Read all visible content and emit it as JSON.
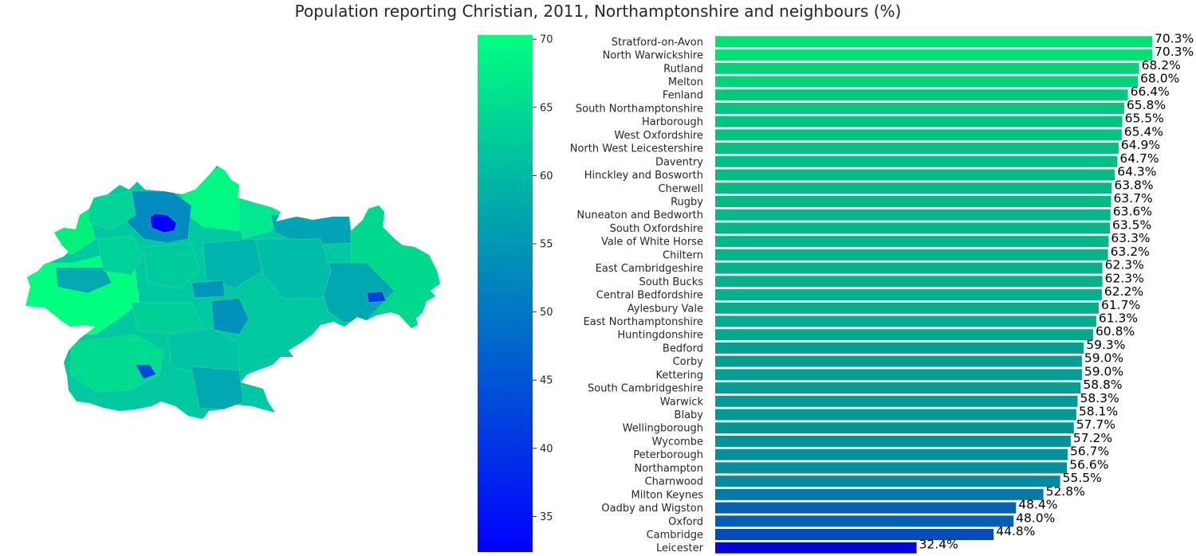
{
  "chart_data": [
    {
      "type": "map",
      "title": "Population reporting Christian, 2011, Northamptonshire and neighbours (%)",
      "colorbar": {
        "min": 32.4,
        "max": 70.3,
        "ticks": [
          35,
          40,
          45,
          50,
          55,
          60,
          65,
          70
        ],
        "tick_labels": [
          "35",
          "40",
          "45",
          "50",
          "55",
          "60",
          "65",
          "70"
        ],
        "color_low": "#0000ff",
        "color_high": "#00ff80",
        "colormap": "winter"
      }
    },
    {
      "type": "bar",
      "orientation": "horizontal",
      "xlim": [
        0,
        70.3
      ],
      "categories": [
        "Stratford-on-Avon",
        "North Warwickshire",
        "Rutland",
        "Melton",
        "Fenland",
        "South Northamptonshire",
        "Harborough",
        "West Oxfordshire",
        "North West Leicestershire",
        "Daventry",
        "Hinckley and Bosworth",
        "Cherwell",
        "Rugby",
        "Nuneaton and Bedworth",
        "South Oxfordshire",
        "Vale of White Horse",
        "Chiltern",
        "East Cambridgeshire",
        "South Bucks",
        "Central Bedfordshire",
        "Aylesbury Vale",
        "East Northamptonshire",
        "Huntingdonshire",
        "Bedford",
        "Corby",
        "Kettering",
        "South Cambridgeshire",
        "Warwick",
        "Blaby",
        "Wellingborough",
        "Wycombe",
        "Peterborough",
        "Northampton",
        "Charnwood",
        "Milton Keynes",
        "Oadby and Wigston",
        "Oxford",
        "Cambridge",
        "Leicester"
      ],
      "values": [
        70.3,
        70.3,
        68.2,
        68.0,
        66.4,
        65.8,
        65.5,
        65.4,
        64.9,
        64.7,
        64.3,
        63.8,
        63.7,
        63.6,
        63.5,
        63.3,
        63.2,
        62.3,
        62.3,
        62.2,
        61.7,
        61.3,
        60.8,
        59.3,
        59.0,
        59.0,
        58.8,
        58.3,
        58.1,
        57.7,
        57.2,
        56.7,
        56.6,
        55.5,
        52.8,
        48.4,
        48.0,
        44.8,
        32.4
      ],
      "value_labels": [
        "70.3%",
        "70.3%",
        "68.2%",
        "68.0%",
        "66.4%",
        "65.8%",
        "65.5%",
        "65.4%",
        "64.9%",
        "64.7%",
        "64.3%",
        "63.8%",
        "63.7%",
        "63.6%",
        "63.5%",
        "63.3%",
        "63.2%",
        "62.3%",
        "62.3%",
        "62.2%",
        "61.7%",
        "61.3%",
        "60.8%",
        "59.3%",
        "59.0%",
        "59.0%",
        "58.8%",
        "58.3%",
        "58.1%",
        "57.7%",
        "57.2%",
        "56.7%",
        "56.6%",
        "55.5%",
        "52.8%",
        "48.4%",
        "48.0%",
        "44.8%",
        "32.4%"
      ]
    }
  ]
}
